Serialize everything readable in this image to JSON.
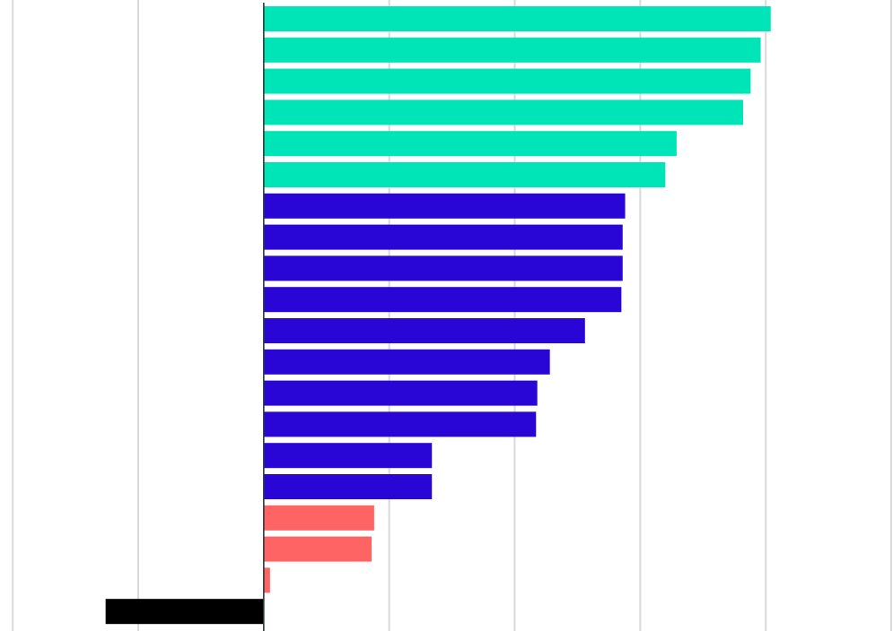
{
  "colors": {
    "teal": "#00E5B8",
    "blue": "#2A06D6",
    "red": "#FF6464",
    "black": "#000000",
    "grid": "#d9d9d9",
    "axis": "#2a3a3a"
  },
  "chart_data": {
    "type": "bar",
    "orientation": "horizontal",
    "title": "",
    "xlabel": "",
    "ylabel": "",
    "grid": true,
    "xlim": [
      -1.04,
      2.5
    ],
    "gridlines": [
      -1,
      -0.5,
      0,
      0.5,
      1,
      1.5,
      2,
      2.5
    ],
    "values": [
      2.02,
      1.98,
      1.94,
      1.91,
      1.645,
      1.6,
      1.44,
      1.43,
      1.43,
      1.425,
      1.28,
      1.14,
      1.09,
      1.085,
      0.67,
      0.67,
      0.44,
      0.43,
      0.025,
      -0.63
    ],
    "colors": [
      "teal",
      "teal",
      "teal",
      "teal",
      "teal",
      "teal",
      "blue",
      "blue",
      "blue",
      "blue",
      "blue",
      "blue",
      "blue",
      "blue",
      "blue",
      "blue",
      "red",
      "red",
      "red",
      "black"
    ]
  }
}
